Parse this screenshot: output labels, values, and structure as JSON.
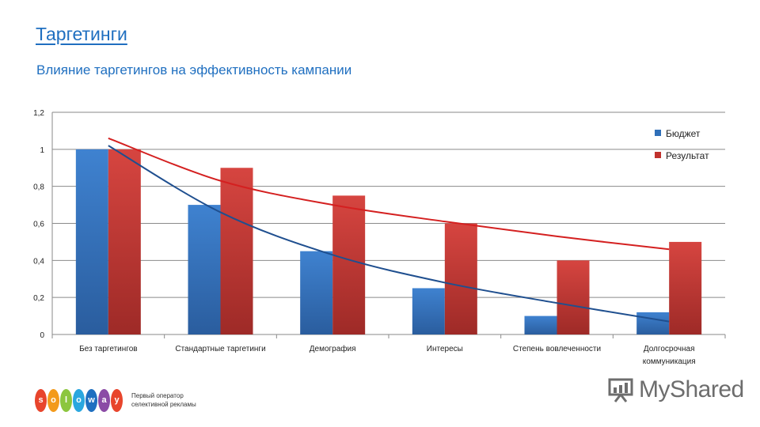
{
  "header": {
    "title": "Таргетинги",
    "subtitle": "Влияние таргетингов на эффективность кампании"
  },
  "chart_data": {
    "type": "bar",
    "categories": [
      "Без таргетингов",
      "Стандартные таргетинги",
      "Демография",
      "Интересы",
      "Степень вовлеченности",
      "Долгосрочная коммуникация"
    ],
    "series": [
      {
        "name": "Бюджет",
        "values": [
          1,
          0.7,
          0.45,
          0.25,
          0.1,
          0.12
        ],
        "color": "#2f6fb8"
      },
      {
        "name": "Результат",
        "values": [
          1,
          0.9,
          0.75,
          0.6,
          0.4,
          0.5
        ],
        "color": "#c0312d"
      }
    ],
    "trendlines": [
      {
        "series": "Бюджет",
        "type": "exponential",
        "color": "#1f4f8f",
        "values": [
          1.02,
          0.66,
          0.43,
          0.28,
          0.17,
          0.07
        ]
      },
      {
        "series": "Результат",
        "type": "power",
        "color": "#d42020",
        "values": [
          1.06,
          0.83,
          0.7,
          0.61,
          0.53,
          0.46
        ]
      }
    ],
    "ylim": [
      0,
      1.2
    ],
    "yticks": [
      "0",
      "0,2",
      "0,4",
      "0,6",
      "0,8",
      "1",
      "1,2"
    ],
    "grid": true,
    "legend_position": "top-right",
    "xlabel": "",
    "ylabel": ""
  },
  "footer": {
    "logo_letters": [
      "s",
      "o",
      "l",
      "o",
      "w",
      "a",
      "y"
    ],
    "logo_colors": [
      "#e8452c",
      "#f39a1b",
      "#8cc63e",
      "#2aa7df",
      "#1f6fc0",
      "#8b4ba6",
      "#e8452c"
    ],
    "logo_line1": "Первый оператор",
    "logo_line2": "селективной рекламы",
    "watermark": "MyShared"
  }
}
